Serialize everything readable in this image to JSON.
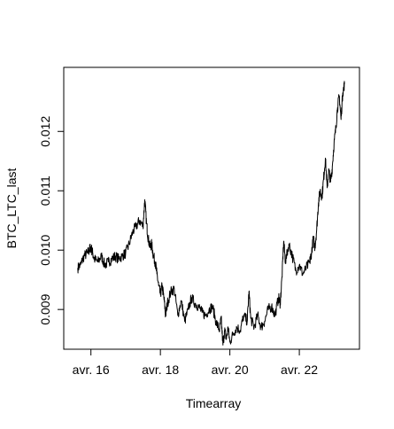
{
  "chart_data": {
    "type": "line",
    "title": "",
    "xlabel": "Timearray",
    "ylabel": "BTC_LTC_last",
    "x_range": [
      15.6,
      23.4
    ],
    "ylim": [
      8.45,
      12.9
    ],
    "y_display_scale": 0.001,
    "x_ticks": [
      {
        "value": 16,
        "label": "avr. 16"
      },
      {
        "value": 18,
        "label": "avr. 18"
      },
      {
        "value": 20,
        "label": "avr. 20"
      },
      {
        "value": 22,
        "label": "avr. 22"
      }
    ],
    "y_ticks": [
      {
        "value": 9,
        "label": "0.009"
      },
      {
        "value": 10,
        "label": "0.010"
      },
      {
        "value": 11,
        "label": "0.011"
      },
      {
        "value": 12,
        "label": "0.012"
      }
    ],
    "grid": false,
    "legend": "none",
    "line_color": "#000000",
    "series": [
      {
        "x": [
          15.62,
          15.7,
          15.8,
          15.9,
          15.95,
          16.0,
          16.05,
          16.1,
          16.2,
          16.3,
          16.4,
          16.5,
          16.6,
          16.7,
          16.8,
          16.9,
          17.0,
          17.1,
          17.2,
          17.3,
          17.4,
          17.5,
          17.55,
          17.6,
          17.65,
          17.7,
          17.75,
          17.8,
          17.85,
          17.9,
          17.95,
          18.0,
          18.05,
          18.1,
          18.15,
          18.2,
          18.3,
          18.4,
          18.5,
          18.6,
          18.7,
          18.8,
          18.9,
          19.0,
          19.1,
          19.2,
          19.3,
          19.4,
          19.5,
          19.6,
          19.7,
          19.75,
          19.8,
          19.85,
          19.9,
          19.95,
          20.0,
          20.1,
          20.2,
          20.3,
          20.4,
          20.5,
          20.55,
          20.6,
          20.7,
          20.8,
          20.9,
          21.0,
          21.1,
          21.2,
          21.3,
          21.4,
          21.45,
          21.5,
          21.55,
          21.6,
          21.7,
          21.8,
          21.9,
          22.0,
          22.1,
          22.2,
          22.3,
          22.35,
          22.4,
          22.45,
          22.5,
          22.55,
          22.6,
          22.65,
          22.7,
          22.75,
          22.8,
          22.85,
          22.9,
          22.95,
          23.0,
          23.05,
          23.1,
          23.15,
          23.2,
          23.25,
          23.3
        ],
        "y": [
          9.7,
          9.75,
          9.9,
          9.95,
          10.0,
          10.05,
          9.95,
          9.85,
          9.8,
          9.9,
          9.75,
          9.8,
          9.85,
          9.9,
          9.85,
          9.9,
          9.95,
          10.1,
          10.3,
          10.4,
          10.5,
          10.4,
          10.85,
          10.45,
          10.2,
          10.05,
          10.1,
          9.9,
          9.8,
          9.6,
          9.4,
          9.25,
          9.4,
          9.2,
          8.9,
          9.1,
          9.3,
          9.35,
          8.9,
          9.15,
          8.8,
          9.0,
          9.2,
          9.1,
          9.05,
          8.95,
          8.9,
          9.0,
          9.05,
          8.8,
          8.65,
          8.85,
          8.4,
          8.65,
          8.5,
          8.7,
          8.45,
          8.6,
          8.7,
          8.65,
          8.9,
          8.8,
          9.3,
          8.85,
          8.7,
          8.9,
          8.7,
          8.8,
          9.0,
          9.05,
          8.9,
          9.2,
          9.1,
          9.55,
          10.15,
          9.8,
          10.1,
          9.9,
          9.65,
          9.75,
          9.6,
          9.7,
          9.8,
          9.95,
          10.2,
          10.05,
          10.35,
          10.8,
          11.0,
          10.9,
          11.2,
          11.55,
          11.05,
          11.35,
          11.15,
          11.4,
          11.8,
          12.05,
          12.4,
          12.6,
          12.2,
          12.65,
          12.8
        ]
      }
    ]
  }
}
